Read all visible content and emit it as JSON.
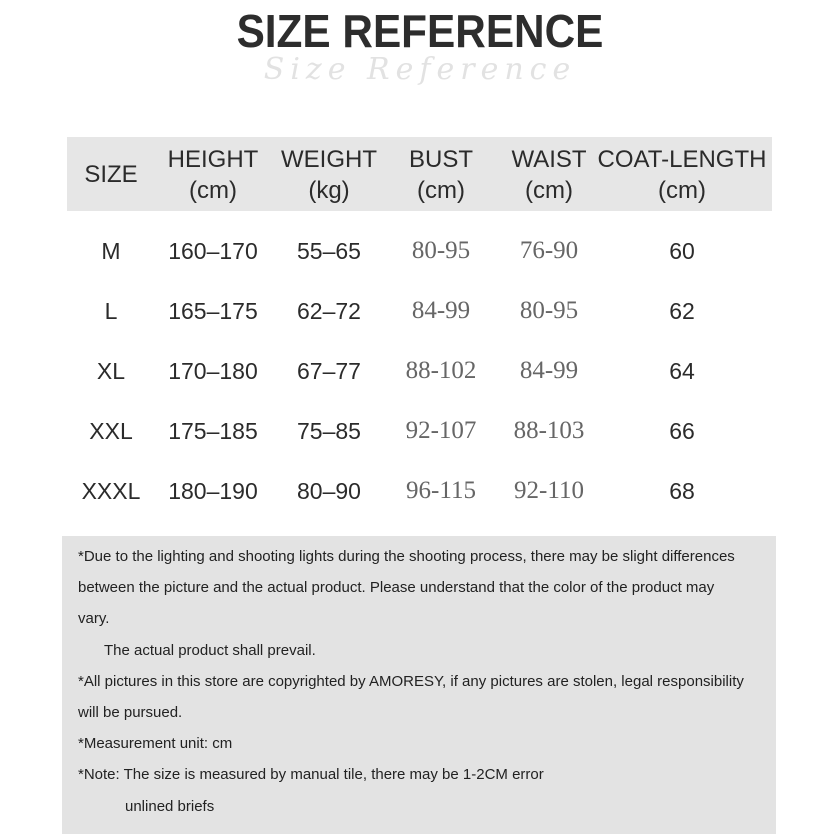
{
  "title": "SIZE REFERENCE",
  "subtitle_script": "Size Reference",
  "table": {
    "headers": [
      {
        "line1": "SIZE",
        "line2": ""
      },
      {
        "line1": "HEIGHT",
        "line2": "(cm)"
      },
      {
        "line1": "WEIGHT",
        "line2": "(kg)"
      },
      {
        "line1": "BUST",
        "line2": "(cm)"
      },
      {
        "line1": "WAIST",
        "line2": "(cm)"
      },
      {
        "line1": "COAT-LENGTH",
        "line2": "(cm)"
      }
    ],
    "rows": [
      [
        "M",
        "160–170",
        "55–65",
        "80-95",
        "76-90",
        "60"
      ],
      [
        "L",
        "165–175",
        "62–72",
        "84-99",
        "80-95",
        "62"
      ],
      [
        "XL",
        "170–180",
        "67–77",
        "88-102",
        "84-99",
        "64"
      ],
      [
        "XXL",
        "175–185",
        "75–85",
        "92-107",
        "88-103",
        "66"
      ],
      [
        "XXXL",
        "180–190",
        "80–90",
        "96-115",
        "92-110",
        "68"
      ]
    ]
  },
  "notes": [
    "*Due to the lighting and shooting lights during the shooting process, there may be slight differences",
    "between the picture and the actual product. Please understand that the color of the product may",
    "vary.",
    "The actual product shall prevail.",
    "*All pictures in this store are copyrighted by AMORESY, if any pictures are stolen, legal responsibility",
    "will be pursued.",
    "*Measurement unit: cm",
    "*Note: The size is measured by manual tile, there may be 1-2CM error",
    "unlined briefs"
  ]
}
